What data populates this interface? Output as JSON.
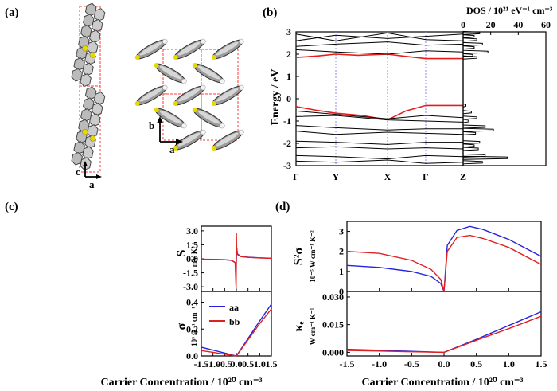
{
  "panels": {
    "a": {
      "label": "(a)",
      "axes_side": {
        "c": "c",
        "a": "a"
      },
      "axes_top": {
        "b": "b",
        "a": "a"
      }
    },
    "b": {
      "label": "(b)",
      "ylabel": "Energy / eV",
      "dos_label": "DOS / 10²¹ eV⁻¹ cm⁻³",
      "kpoints": [
        "Γ",
        "Y",
        "X",
        "Γ",
        "Z"
      ],
      "yticks": [
        "3",
        "2",
        "1",
        "0",
        "-1",
        "-2",
        "-3"
      ],
      "dos_ticks": [
        "0",
        "20",
        "40",
        "60"
      ]
    },
    "c": {
      "label": "(c)",
      "top_ylabel_main": "S",
      "top_ylabel_unit": "mV K⁻¹",
      "bottom_ylabel_main": "σ",
      "bottom_ylabel_unit": "10³ Ω⁻¹ cm⁻¹",
      "xlabel": "Carrier Concentration / 10²⁰ cm⁻³",
      "legend": [
        "aa",
        "bb"
      ]
    },
    "d": {
      "label": "(d)",
      "top_ylabel_main": "S²σ",
      "top_ylabel_unit": "10⁻⁵ W cm⁻¹ K⁻²",
      "bottom_ylabel_main": "κₑ",
      "bottom_ylabel_unit": "W cm⁻¹ K⁻¹",
      "xlabel": "Carrier Concentration / 10²⁰ cm⁻³"
    }
  },
  "colors": {
    "aa": "#2323e0",
    "bb": "#e02020",
    "band_red": "#e81c1c",
    "dashed_box": "#ff3b3b"
  },
  "chart_data": [
    {
      "id": "c_top",
      "type": "line",
      "title": "",
      "ylabel": "S (mV K⁻¹)",
      "xlabel": "",
      "xlim": [
        -1.5,
        1.5
      ],
      "ylim": [
        -3.5,
        3.5
      ],
      "yticks": [
        -3.0,
        -1.5,
        0.0,
        1.5,
        3.0
      ],
      "series": [
        {
          "name": "aa",
          "x": [
            -1.5,
            -1.0,
            -0.5,
            -0.2,
            -0.05,
            -0.01,
            0.0,
            0.01,
            0.05,
            0.2,
            0.5,
            1.0,
            1.5
          ],
          "y": [
            -0.05,
            -0.07,
            -0.1,
            -0.18,
            -0.4,
            -1.2,
            0.0,
            1.2,
            0.5,
            0.25,
            0.17,
            0.1,
            0.06
          ]
        },
        {
          "name": "bb",
          "x": [
            -1.5,
            -1.0,
            -0.5,
            -0.2,
            -0.05,
            -0.01,
            0.0,
            0.005,
            0.01,
            0.05,
            0.2,
            0.5,
            1.0,
            1.5
          ],
          "y": [
            -0.04,
            -0.06,
            -0.09,
            -0.16,
            -0.4,
            -3.2,
            0.0,
            2.8,
            1.3,
            0.45,
            0.23,
            0.15,
            0.09,
            0.05
          ]
        }
      ]
    },
    {
      "id": "c_bottom",
      "type": "line",
      "ylabel": "σ (10³ Ω⁻¹ cm⁻¹)",
      "xlabel": "Carrier Concentration / 10²⁰ cm⁻³",
      "xlim": [
        -1.5,
        1.5
      ],
      "ylim": [
        0.0,
        0.48
      ],
      "xticks": [
        -1.5,
        -1.0,
        -0.5,
        0.0,
        0.5,
        1.0,
        1.5
      ],
      "yticks": [
        0.0,
        0.2,
        0.4
      ],
      "series": [
        {
          "name": "aa",
          "x": [
            -1.5,
            -1.0,
            -0.5,
            0.0,
            0.5,
            1.0,
            1.5
          ],
          "y": [
            0.065,
            0.043,
            0.022,
            0.0,
            0.13,
            0.26,
            0.385
          ]
        },
        {
          "name": "bb",
          "x": [
            -1.5,
            -1.0,
            -0.5,
            0.0,
            0.5,
            1.0,
            1.5
          ],
          "y": [
            0.04,
            0.027,
            0.013,
            0.0,
            0.12,
            0.24,
            0.35
          ]
        }
      ]
    },
    {
      "id": "d_top",
      "type": "line",
      "ylabel": "S²σ (10⁻⁵ W cm⁻¹ K⁻²)",
      "xlabel": "",
      "xlim": [
        -1.5,
        1.5
      ],
      "ylim": [
        0,
        3.5
      ],
      "yticks": [
        0,
        1,
        2,
        3
      ],
      "series": [
        {
          "name": "aa",
          "x": [
            -1.5,
            -1.0,
            -0.5,
            -0.2,
            -0.05,
            0.0,
            0.05,
            0.2,
            0.4,
            0.6,
            1.0,
            1.5
          ],
          "y": [
            1.3,
            1.2,
            1.0,
            0.75,
            0.4,
            0.0,
            2.3,
            3.05,
            3.25,
            3.1,
            2.6,
            1.75
          ]
        },
        {
          "name": "bb",
          "x": [
            -1.5,
            -1.0,
            -0.5,
            -0.2,
            -0.05,
            0.0,
            0.05,
            0.2,
            0.4,
            0.6,
            1.0,
            1.5
          ],
          "y": [
            2.0,
            1.9,
            1.55,
            1.1,
            0.6,
            0.0,
            2.0,
            2.7,
            2.8,
            2.65,
            2.2,
            1.35
          ]
        }
      ]
    },
    {
      "id": "d_bottom",
      "type": "line",
      "ylabel": "κₑ (W cm⁻¹ K⁻¹)",
      "xlabel": "Carrier Concentration / 10²⁰ cm⁻³",
      "xlim": [
        -1.5,
        1.5
      ],
      "ylim": [
        -0.002,
        0.033
      ],
      "xticks": [
        -1.5,
        -1.0,
        -0.5,
        0.0,
        0.5,
        1.0,
        1.5
      ],
      "yticks": [
        0.0,
        0.015,
        0.03
      ],
      "series": [
        {
          "name": "aa",
          "x": [
            -1.5,
            -1.0,
            -0.5,
            0.0,
            0.5,
            1.0,
            1.5
          ],
          "y": [
            0.0016,
            0.0011,
            0.0005,
            0.0,
            0.007,
            0.0145,
            0.022
          ]
        },
        {
          "name": "bb",
          "x": [
            -1.5,
            -1.0,
            -0.5,
            0.0,
            0.5,
            1.0,
            1.5
          ],
          "y": [
            0.001,
            0.0007,
            0.0003,
            0.0,
            0.0065,
            0.0128,
            0.0195
          ]
        }
      ]
    }
  ]
}
